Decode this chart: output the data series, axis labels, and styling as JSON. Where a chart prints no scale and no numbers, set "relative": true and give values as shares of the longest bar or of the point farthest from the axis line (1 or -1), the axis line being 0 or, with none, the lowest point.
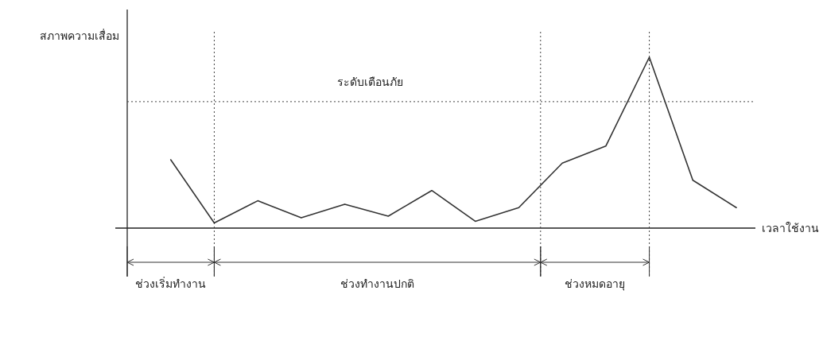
{
  "chart_data": {
    "type": "line",
    "relative": true,
    "xlabel": "เวลาใช้งาน",
    "ylabel": "สภาพความเสื่อม",
    "categories": [
      null,
      null,
      null,
      null,
      null,
      null,
      null,
      null,
      null,
      null,
      null,
      null,
      null,
      null
    ],
    "series": [
      {
        "color": "#333333",
        "values": [
          0.4,
          0.03,
          0.16,
          0.06,
          0.14,
          0.07,
          0.22,
          0.04,
          0.12,
          0.38,
          0.48,
          1,
          0.28,
          0.12
        ]
      }
    ],
    "ref_lines": [
      {
        "axis": "y",
        "value": 0.74,
        "label": "ระดับเตือนภัย",
        "line_style": "dotted"
      }
    ],
    "annotations": [
      "ช่วงเริ่มทำงาน",
      "ช่วงทำงานปกติ",
      "ช่วงหมดอายุ"
    ],
    "marker": "none",
    "line_style": "solid"
  }
}
